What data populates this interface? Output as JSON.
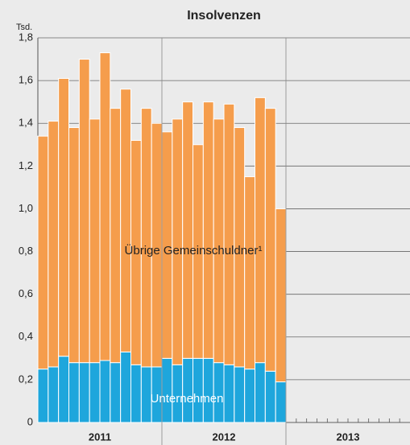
{
  "chart_data": {
    "type": "stacked_bar",
    "title": "Insolvenzen",
    "y_label": "Tsd.",
    "categories": [
      null,
      null,
      null,
      null,
      null,
      null,
      null,
      null,
      null,
      null,
      null,
      null,
      null,
      null,
      null,
      null,
      null,
      null,
      null,
      null,
      null,
      null,
      null,
      null,
      null,
      null,
      null,
      null,
      null,
      null,
      null,
      null,
      null,
      null,
      null,
      null
    ],
    "year_labels": [
      "2011",
      "2012",
      "2013"
    ],
    "series": [
      {
        "name": "Unternehmen",
        "color": "#1ea6dc",
        "values": [
          0.25,
          0.26,
          0.31,
          0.28,
          0.28,
          0.28,
          0.29,
          0.28,
          0.33,
          0.27,
          0.26,
          0.26,
          0.3,
          0.27,
          0.3,
          0.3,
          0.3,
          0.28,
          0.27,
          0.26,
          0.25,
          0.28,
          0.24,
          0.19,
          null,
          null,
          null,
          null,
          null,
          null,
          null,
          null,
          null,
          null,
          null,
          null
        ]
      },
      {
        "name": "Übrige Gemeinschuldner¹",
        "color": "#f59d4c",
        "values": [
          1.09,
          1.15,
          1.3,
          1.1,
          1.42,
          1.14,
          1.44,
          1.19,
          1.23,
          1.05,
          1.21,
          1.14,
          1.06,
          1.15,
          1.2,
          1.0,
          1.2,
          1.14,
          1.22,
          1.12,
          0.9,
          1.24,
          1.23,
          0.81,
          null,
          null,
          null,
          null,
          null,
          null,
          null,
          null,
          null,
          null,
          null,
          null
        ]
      }
    ],
    "ylim": [
      0,
      1.8
    ],
    "yticks": [
      0,
      {
        "value": 0.2,
        "label": "0,2"
      },
      {
        "value": 0.4,
        "label": "0,4"
      },
      {
        "value": 0.6,
        "label": "0,6"
      },
      {
        "value": 0.8,
        "label": "0,8"
      },
      {
        "value": 1.0,
        "label": "1,0"
      },
      {
        "value": 1.2,
        "label": "1,2"
      },
      {
        "value": 1.4,
        "label": "1,4"
      },
      {
        "value": 1.6,
        "label": "1,6"
      },
      {
        "value": 1.8,
        "label": "1,8"
      }
    ],
    "grid": true
  }
}
